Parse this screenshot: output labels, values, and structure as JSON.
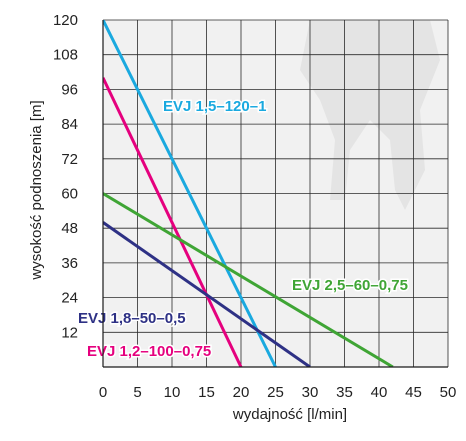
{
  "chart_data": {
    "type": "line",
    "xlabel": "wydajność [l/min]",
    "ylabel": "wysokość podnoszenia [m]",
    "xlim": [
      0,
      50
    ],
    "ylim": [
      0,
      120
    ],
    "x_ticks": [
      0,
      5,
      10,
      15,
      20,
      25,
      30,
      35,
      40,
      45,
      50
    ],
    "y_ticks": [
      12,
      24,
      36,
      48,
      60,
      72,
      84,
      96,
      108,
      120
    ],
    "grid": true,
    "series": [
      {
        "name": "EVJ 1,5–120–1",
        "color": "#1aa9df",
        "x": [
          0,
          25
        ],
        "y": [
          120,
          0
        ]
      },
      {
        "name": "EVJ 1,2–100–0,75",
        "color": "#e5007e",
        "x": [
          0,
          20
        ],
        "y": [
          100,
          0
        ]
      },
      {
        "name": "EVJ 2,5–60–0,75",
        "color": "#3fa535",
        "x": [
          0,
          42
        ],
        "y": [
          60,
          0
        ]
      },
      {
        "name": "EVJ 1,8–50–0,5",
        "color": "#2e3185",
        "x": [
          0,
          30
        ],
        "y": [
          50,
          0
        ]
      }
    ],
    "annotations": [
      {
        "text": "EVJ 1,5–120–1",
        "series": 0
      },
      {
        "text": "EVJ 2,5–60–0,75",
        "series": 2
      },
      {
        "text": "EVJ 1,8–50–0,5",
        "series": 3
      },
      {
        "text": "EVJ 1,2–100–0,75",
        "series": 1
      }
    ]
  }
}
